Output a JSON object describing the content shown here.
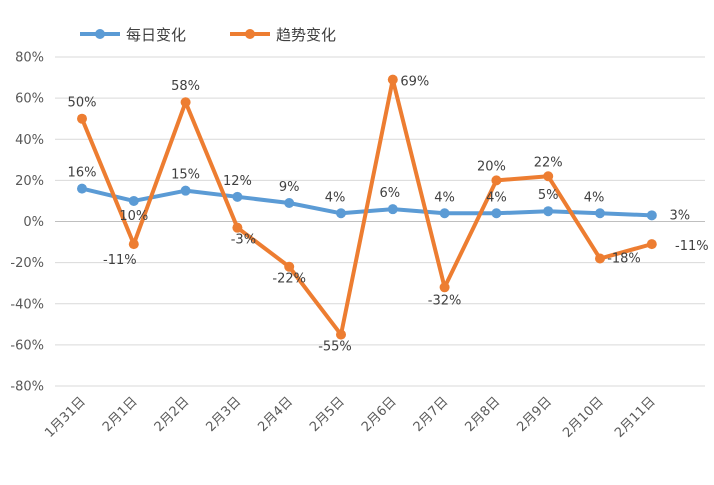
{
  "chart_data": {
    "type": "line",
    "title": "",
    "xlabel": "",
    "ylabel": "",
    "categories": [
      "1月31日",
      "2月1日",
      "2月2日",
      "2月3日",
      "2月4日",
      "2月5日",
      "2月6日",
      "2月7日",
      "2月8日",
      "2月9日",
      "2月10日",
      "2月11日"
    ],
    "ylim": [
      -80,
      80
    ],
    "yticks": [
      80,
      60,
      40,
      20,
      0,
      -20,
      -40,
      -60,
      -80
    ],
    "ytick_labels": [
      "80%",
      "60%",
      "40%",
      "20%",
      "0%",
      "-20%",
      "-40%",
      "-60%",
      "-80%"
    ],
    "grid": true,
    "legend_position": "top-left",
    "series": [
      {
        "name": "每日变化",
        "color": "#5b9bd5",
        "values": [
          16,
          10,
          15,
          12,
          9,
          4,
          6,
          4,
          4,
          5,
          4,
          3
        ],
        "labels": [
          "16%",
          "10%",
          "15%",
          "12%",
          "9%",
          "4%",
          "6%",
          "4%",
          "4%",
          "5%",
          "4%",
          "3%"
        ]
      },
      {
        "name": "趋势变化",
        "color": "#ed7d31",
        "values": [
          50,
          -11,
          58,
          -3,
          -22,
          -55,
          69,
          -32,
          20,
          22,
          -18,
          -11
        ],
        "labels": [
          "50%",
          "-11%",
          "58%",
          "-3%",
          "-22%",
          "-55%",
          "69%",
          "-32%",
          "20%",
          "22%",
          "-18%",
          "-11%"
        ]
      }
    ]
  }
}
